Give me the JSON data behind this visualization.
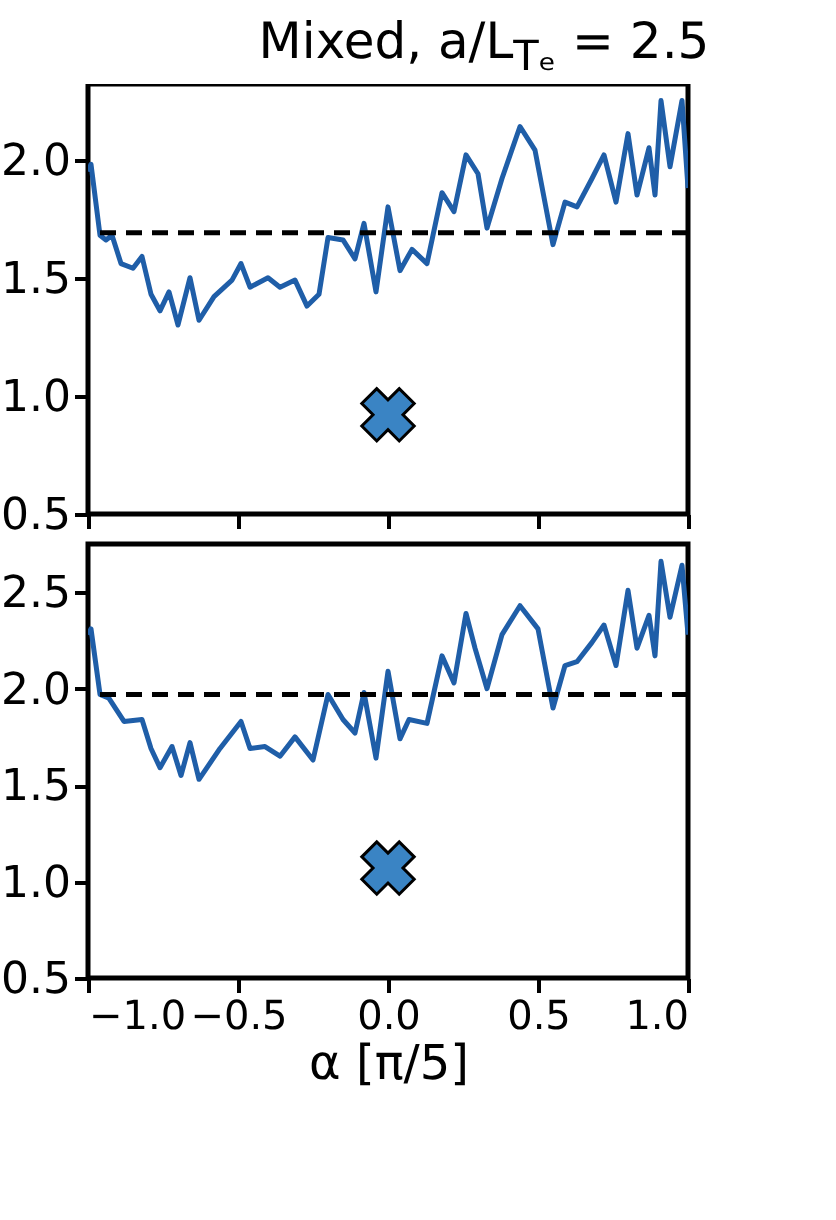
{
  "chart_data": [
    {
      "type": "line",
      "title": "Mixed, a/L$_{Tₑ}$ = 2.5",
      "xlim": [
        -1,
        1
      ],
      "ylim": [
        0.5,
        2.32
      ],
      "xticks": [
        {
          "value": -1,
          "label": null
        },
        {
          "value": -0.5,
          "label": null
        },
        {
          "value": 0,
          "label": null
        },
        {
          "value": 0.5,
          "label": null
        },
        {
          "value": 1,
          "label": null
        }
      ],
      "yticks": [
        {
          "value": 0.5,
          "label": "0.5"
        },
        {
          "value": 1,
          "label": "1.0"
        },
        {
          "value": 1.5,
          "label": "1.5"
        },
        {
          "value": 2,
          "label": "2.0"
        }
      ],
      "tick_labels": "y",
      "grid": false,
      "series": [
        {
          "color": "#1f5ea8",
          "x": [
            -1,
            -0.99,
            -0.96,
            -0.94,
            -0.92,
            -0.89,
            -0.85,
            -0.82,
            -0.79,
            -0.76,
            -0.73,
            -0.7,
            -0.66,
            -0.63,
            -0.58,
            -0.52,
            -0.49,
            -0.46,
            -0.4,
            -0.36,
            -0.31,
            -0.27,
            -0.23,
            -0.2,
            -0.15,
            -0.11,
            -0.08,
            -0.04,
            0,
            0.04,
            0.08,
            0.13,
            0.18,
            0.22,
            0.26,
            0.3,
            0.33,
            0.38,
            0.44,
            0.49,
            0.55,
            0.59,
            0.63,
            0.68,
            0.72,
            0.76,
            0.8,
            0.83,
            0.87,
            0.89,
            0.91,
            0.94,
            0.98,
            1
          ],
          "values": [
            1.95,
            1.98,
            1.68,
            1.66,
            1.68,
            1.56,
            1.54,
            1.59,
            1.43,
            1.36,
            1.44,
            1.3,
            1.5,
            1.32,
            1.42,
            1.49,
            1.56,
            1.46,
            1.5,
            1.46,
            1.49,
            1.38,
            1.43,
            1.67,
            1.66,
            1.58,
            1.73,
            1.44,
            1.8,
            1.53,
            1.62,
            1.56,
            1.86,
            1.78,
            2.02,
            1.94,
            1.71,
            1.92,
            2.14,
            2.04,
            1.64,
            1.82,
            1.8,
            1.92,
            2.02,
            1.82,
            2.11,
            1.85,
            2.05,
            1.85,
            2.25,
            1.97,
            2.25,
            1.88
          ]
        },
        {
          "type": "scatter",
          "marker": "cross",
          "color": "#3a84c4",
          "x": [
            0
          ],
          "values": [
            0.92
          ]
        }
      ],
      "ref_lines": [
        {
          "axis": "y",
          "value": 1.69,
          "color": "#000000",
          "line_style": "dashed"
        }
      ]
    },
    {
      "type": "line",
      "xlabel": "α [π/5]",
      "xlim": [
        -1,
        1
      ],
      "ylim": [
        0.5,
        2.75
      ],
      "xticks": [
        {
          "value": -1,
          "label": "−1.0"
        },
        {
          "value": -0.5,
          "label": "−0.5"
        },
        {
          "value": 0,
          "label": "0.0"
        },
        {
          "value": 0.5,
          "label": "0.5"
        },
        {
          "value": 1,
          "label": "1.0"
        }
      ],
      "yticks": [
        {
          "value": 0.5,
          "label": "0.5"
        },
        {
          "value": 1,
          "label": "1.0"
        },
        {
          "value": 1.5,
          "label": "1.5"
        },
        {
          "value": 2,
          "label": "2.0"
        },
        {
          "value": 2.5,
          "label": "2.5"
        }
      ],
      "grid": false,
      "series": [
        {
          "color": "#1f5ea8",
          "x": [
            -1,
            -0.99,
            -0.96,
            -0.93,
            -0.88,
            -0.82,
            -0.79,
            -0.76,
            -0.72,
            -0.69,
            -0.66,
            -0.63,
            -0.56,
            -0.49,
            -0.46,
            -0.41,
            -0.36,
            -0.31,
            -0.25,
            -0.2,
            -0.15,
            -0.11,
            -0.08,
            -0.04,
            0,
            0.04,
            0.07,
            0.13,
            0.18,
            0.22,
            0.26,
            0.29,
            0.33,
            0.38,
            0.44,
            0.5,
            0.55,
            0.59,
            0.63,
            0.68,
            0.72,
            0.76,
            0.8,
            0.83,
            0.87,
            0.89,
            0.91,
            0.94,
            0.98,
            1
          ],
          "values": [
            2.28,
            2.31,
            1.97,
            1.95,
            1.83,
            1.84,
            1.69,
            1.59,
            1.7,
            1.55,
            1.72,
            1.53,
            1.69,
            1.83,
            1.69,
            1.7,
            1.65,
            1.75,
            1.63,
            1.97,
            1.84,
            1.77,
            1.98,
            1.64,
            2.09,
            1.74,
            1.84,
            1.82,
            2.17,
            2.03,
            2.39,
            2.21,
            2,
            2.28,
            2.43,
            2.31,
            1.9,
            2.12,
            2.14,
            2.24,
            2.33,
            2.12,
            2.51,
            2.21,
            2.38,
            2.17,
            2.66,
            2.37,
            2.64,
            2.28
          ]
        },
        {
          "type": "scatter",
          "marker": "cross",
          "color": "#3a84c4",
          "x": [
            0
          ],
          "values": [
            1.07
          ]
        }
      ],
      "ref_lines": [
        {
          "axis": "y",
          "value": 1.97,
          "color": "#000000",
          "line_style": "dashed"
        }
      ]
    }
  ]
}
